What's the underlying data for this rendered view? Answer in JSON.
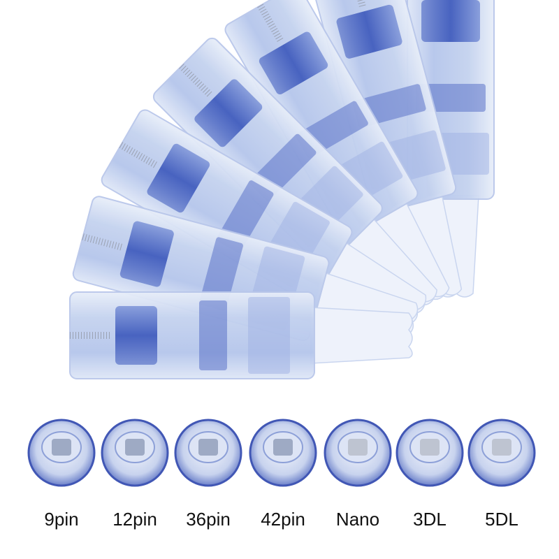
{
  "labels": [
    "9pin",
    "12pin",
    "36pin",
    "42pin",
    "Nano",
    "3DL",
    "5DL"
  ]
}
